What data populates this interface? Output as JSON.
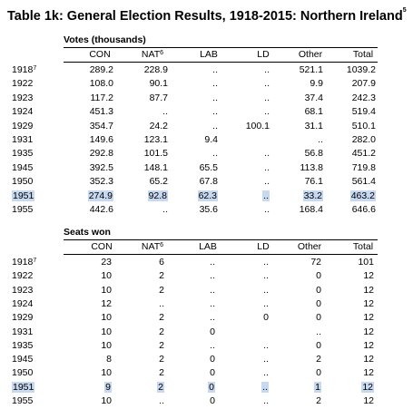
{
  "header": {
    "title": "Table 1k: General Election Results, 1918-2015: Northern Ireland",
    "title_sup": "5"
  },
  "sections": [
    {
      "label": "Votes (thousands)",
      "columns": [
        {
          "text": "CON"
        },
        {
          "text": "NAT",
          "sup": "6"
        },
        {
          "text": "LAB"
        },
        {
          "text": "LD"
        },
        {
          "text": "Other"
        },
        {
          "text": "Total"
        }
      ],
      "rows": [
        {
          "year": "1918",
          "year_sup": "7",
          "cells": [
            "289.2",
            "228.9",
            "..",
            "..",
            "521.1",
            "1039.2"
          ]
        },
        {
          "year": "1922",
          "cells": [
            "108.0",
            "90.1",
            "..",
            "..",
            "9.9",
            "207.9"
          ]
        },
        {
          "year": "1923",
          "cells": [
            "117.2",
            "87.7",
            "..",
            "..",
            "37.4",
            "242.3"
          ]
        },
        {
          "year": "1924",
          "cells": [
            "451.3",
            "..",
            "..",
            "..",
            "68.1",
            "519.4"
          ]
        },
        {
          "year": "1929",
          "cells": [
            "354.7",
            "24.2",
            "..",
            "100.1",
            "31.1",
            "510.1"
          ]
        },
        {
          "year": "1931",
          "cells": [
            "149.6",
            "123.1",
            "9.4",
            null,
            "..",
            "282.0"
          ]
        },
        {
          "year": "1935",
          "cells": [
            "292.8",
            "101.5",
            "..",
            "..",
            "56.8",
            "451.2"
          ]
        },
        {
          "year": "1945",
          "cells": [
            "392.5",
            "148.1",
            "65.5",
            "..",
            "113.8",
            "719.8"
          ]
        },
        {
          "year": "1950",
          "cells": [
            "352.3",
            "65.2",
            "67.8",
            "..",
            "76.1",
            "561.4"
          ]
        },
        {
          "year": "1951",
          "highlighted": true,
          "cells": [
            "274.9",
            "92.8",
            "62.3",
            "..",
            "33.2",
            "463.2"
          ]
        },
        {
          "year": "1955",
          "cells": [
            "442.6",
            "..",
            "35.6",
            "..",
            "168.4",
            "646.6"
          ]
        }
      ]
    },
    {
      "label": "Seats won",
      "columns": [
        {
          "text": "CON"
        },
        {
          "text": "NAT",
          "sup": "6"
        },
        {
          "text": "LAB"
        },
        {
          "text": "LD"
        },
        {
          "text": "Other"
        },
        {
          "text": "Total"
        }
      ],
      "rows": [
        {
          "year": "1918",
          "year_sup": "7",
          "cells": [
            "23",
            "6",
            "..",
            "..",
            "72",
            "101"
          ]
        },
        {
          "year": "1922",
          "cells": [
            "10",
            "2",
            "..",
            "..",
            "0",
            "12"
          ]
        },
        {
          "year": "1923",
          "cells": [
            "10",
            "2",
            "..",
            "..",
            "0",
            "12"
          ]
        },
        {
          "year": "1924",
          "cells": [
            "12",
            "..",
            "..",
            "..",
            "0",
            "12"
          ]
        },
        {
          "year": "1929",
          "cells": [
            "10",
            "2",
            "..",
            "0",
            "0",
            "12"
          ]
        },
        {
          "year": "1931",
          "cells": [
            "10",
            "2",
            "0",
            null,
            "..",
            "12"
          ]
        },
        {
          "year": "1935",
          "cells": [
            "10",
            "2",
            "..",
            "..",
            "0",
            "12"
          ]
        },
        {
          "year": "1945",
          "cells": [
            "8",
            "2",
            "0",
            "..",
            "2",
            "12"
          ]
        },
        {
          "year": "1950",
          "cells": [
            "10",
            "2",
            "0",
            "..",
            "0",
            "12"
          ]
        },
        {
          "year": "1951",
          "highlighted": true,
          "cells": [
            "9",
            "2",
            "0",
            "..",
            "1",
            "12"
          ]
        },
        {
          "year": "1955",
          "cells": [
            "10",
            "..",
            "0",
            "..",
            "2",
            "12"
          ]
        }
      ]
    }
  ]
}
